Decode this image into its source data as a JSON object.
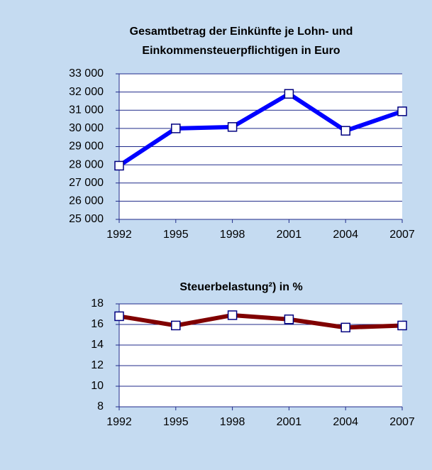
{
  "chart_data": [
    {
      "type": "line",
      "title": [
        "Gesamtbetrag der Einkünfte je Lohn- und",
        "Einkommensteuerpflichtigen in Euro"
      ],
      "x": [
        1992,
        1995,
        1998,
        2001,
        2004,
        2007
      ],
      "series": [
        {
          "color": "#0000ff",
          "values": [
            27950,
            30000,
            30080,
            31900,
            29870,
            30940
          ]
        }
      ],
      "xlim": [
        1992,
        2007
      ],
      "xticks": [
        1992,
        1995,
        1998,
        2001,
        2004,
        2007
      ],
      "ylim": [
        25000,
        33000
      ],
      "yticks": [
        {
          "value": 25000,
          "label": "25 000"
        },
        {
          "value": 26000,
          "label": "26 000"
        },
        {
          "value": 27000,
          "label": "27 000"
        },
        {
          "value": 28000,
          "label": "28 000"
        },
        {
          "value": 29000,
          "label": "29 000"
        },
        {
          "value": 30000,
          "label": "30 000"
        },
        {
          "value": 31000,
          "label": "31 000"
        },
        {
          "value": 32000,
          "label": "32 000"
        },
        {
          "value": 33000,
          "label": "33 000"
        }
      ],
      "grid": true
    },
    {
      "type": "line",
      "title": [
        "Steuerbelastung²) in %"
      ],
      "x": [
        1992,
        1995,
        1998,
        2001,
        2004,
        2007
      ],
      "series": [
        {
          "color": "#800000",
          "values": [
            16.8,
            15.9,
            16.9,
            16.5,
            15.7,
            15.9
          ]
        }
      ],
      "xlim": [
        1992,
        2007
      ],
      "xticks": [
        1992,
        1995,
        1998,
        2001,
        2004,
        2007
      ],
      "ylim": [
        8,
        18
      ],
      "yticks": [
        8,
        10,
        12,
        14,
        16,
        18
      ],
      "grid": true
    }
  ]
}
